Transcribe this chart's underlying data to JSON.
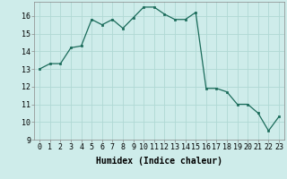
{
  "x": [
    0,
    1,
    2,
    3,
    4,
    5,
    6,
    7,
    8,
    9,
    10,
    11,
    12,
    13,
    14,
    15,
    16,
    17,
    18,
    19,
    20,
    21,
    22,
    23
  ],
  "y": [
    13.0,
    13.3,
    13.3,
    14.2,
    14.3,
    15.8,
    15.5,
    15.8,
    15.3,
    15.9,
    16.5,
    16.5,
    16.1,
    15.8,
    15.8,
    16.2,
    11.9,
    11.9,
    11.7,
    11.0,
    11.0,
    10.5,
    9.5,
    10.3
  ],
  "line_color": "#1a6b5a",
  "marker_color": "#1a6b5a",
  "bg_color": "#ceecea",
  "grid_color": "#b0d8d4",
  "xlabel": "Humidex (Indice chaleur)",
  "ylim": [
    9,
    16.8
  ],
  "xlim": [
    -0.5,
    23.5
  ],
  "yticks": [
    9,
    10,
    11,
    12,
    13,
    14,
    15,
    16
  ],
  "xticks": [
    0,
    1,
    2,
    3,
    4,
    5,
    6,
    7,
    8,
    9,
    10,
    11,
    12,
    13,
    14,
    15,
    16,
    17,
    18,
    19,
    20,
    21,
    22,
    23
  ],
  "label_fontsize": 7,
  "tick_fontsize": 6
}
